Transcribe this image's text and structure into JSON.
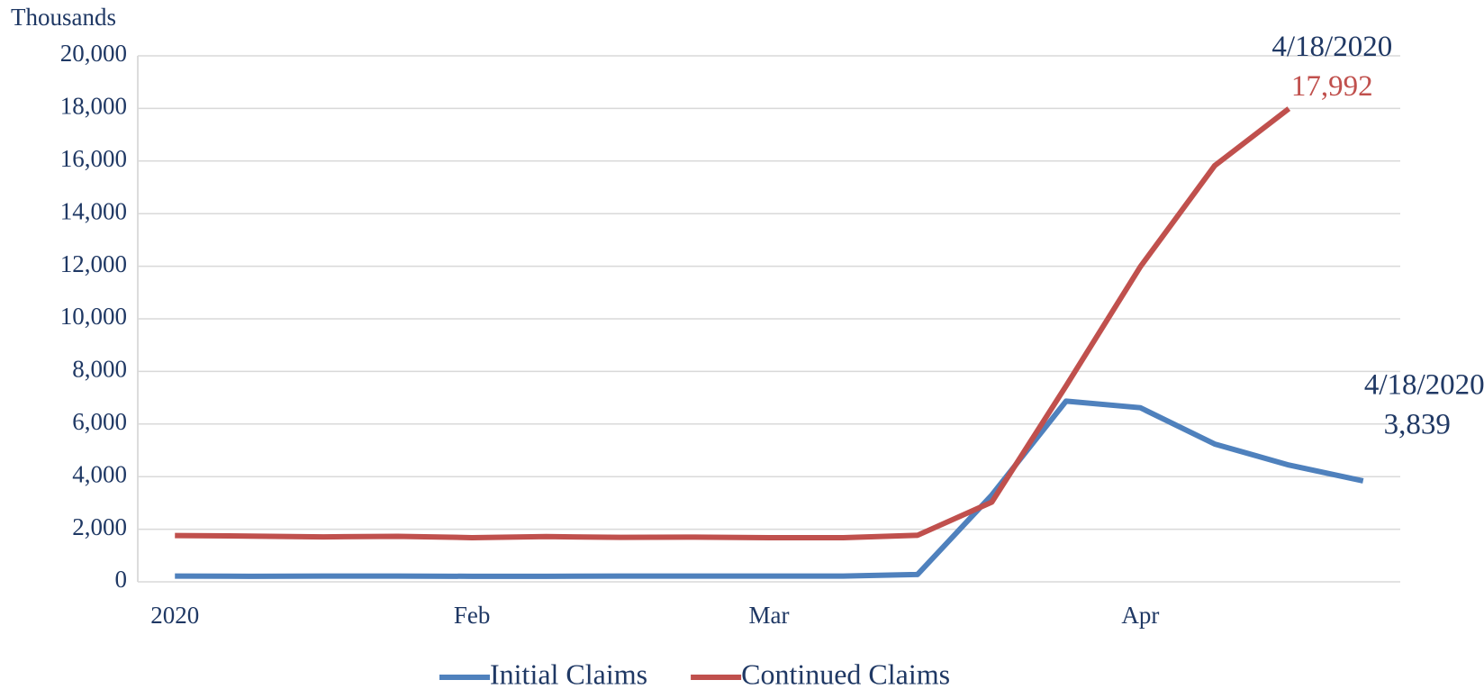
{
  "chart_data": {
    "type": "line",
    "y_unit_label": "Thousands",
    "categories": [
      "2020",
      null,
      null,
      null,
      "Feb",
      null,
      null,
      null,
      "Mar",
      null,
      null,
      null,
      null,
      "Apr",
      null,
      null,
      null
    ],
    "series": [
      {
        "name": "Initial Claims",
        "color": "#4f81bd",
        "values": [
          220,
          210,
          220,
          220,
          210,
          210,
          220,
          220,
          220,
          220,
          280,
          3300,
          6870,
          6620,
          5240,
          4440,
          3839
        ],
        "value_labels": [
          null,
          null,
          null,
          null,
          null,
          null,
          null,
          null,
          null,
          null,
          null,
          null,
          null,
          null,
          null,
          null,
          "3,839"
        ],
        "annotation": "4/18/2020"
      },
      {
        "name": "Continued Claims",
        "color": "#c0504d",
        "values": [
          1760,
          1740,
          1710,
          1730,
          1680,
          1720,
          1690,
          1700,
          1680,
          1680,
          1770,
          3030,
          7450,
          11980,
          15820,
          17992,
          null
        ],
        "value_labels": [
          null,
          null,
          null,
          null,
          null,
          null,
          null,
          null,
          null,
          null,
          null,
          null,
          null,
          null,
          null,
          "17,992",
          null
        ],
        "annotation": "4/18/2020"
      }
    ],
    "ylim": [
      0,
      20000
    ],
    "yticks": [
      0,
      {
        "value": 2000,
        "label": "2,000"
      },
      {
        "value": 4000,
        "label": "4,000"
      },
      {
        "value": 6000,
        "label": "6,000"
      },
      {
        "value": 8000,
        "label": "8,000"
      },
      {
        "value": 10000,
        "label": "10,000"
      },
      {
        "value": 12000,
        "label": "12,000"
      },
      {
        "value": 14000,
        "label": "14,000"
      },
      {
        "value": 16000,
        "label": "16,000"
      },
      {
        "value": 18000,
        "label": "18,000"
      },
      {
        "value": 20000,
        "label": "20,000"
      }
    ],
    "grid": true,
    "legend": "bottom"
  }
}
